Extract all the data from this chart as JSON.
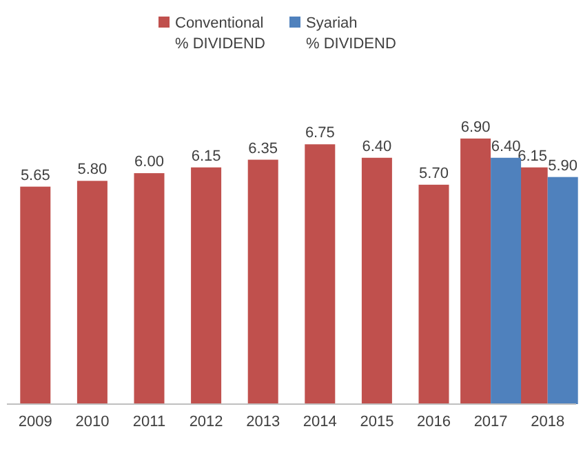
{
  "chart_data": {
    "type": "bar",
    "categories": [
      "2009",
      "2010",
      "2011",
      "2012",
      "2013",
      "2014",
      "2015",
      "2016",
      "2017",
      "2018"
    ],
    "series": [
      {
        "name": "Conventional % DIVIDEND",
        "color": "#c0504d",
        "values": [
          5.65,
          5.8,
          6.0,
          6.15,
          6.35,
          6.75,
          6.4,
          5.7,
          6.9,
          6.15
        ],
        "value_labels": [
          "5.65",
          "5.80",
          "6.00",
          "6.15",
          "6.35",
          "6.75",
          "6.40",
          "5.70",
          "6.90",
          "6.15"
        ]
      },
      {
        "name": "Syariah % DIVIDEND",
        "color": "#4f81bd",
        "values": [
          null,
          null,
          null,
          null,
          null,
          null,
          null,
          null,
          6.4,
          5.9
        ],
        "value_labels": [
          null,
          null,
          null,
          null,
          null,
          null,
          null,
          null,
          "6.40",
          "5.90"
        ]
      }
    ],
    "data_labels": true,
    "legend": "top"
  }
}
